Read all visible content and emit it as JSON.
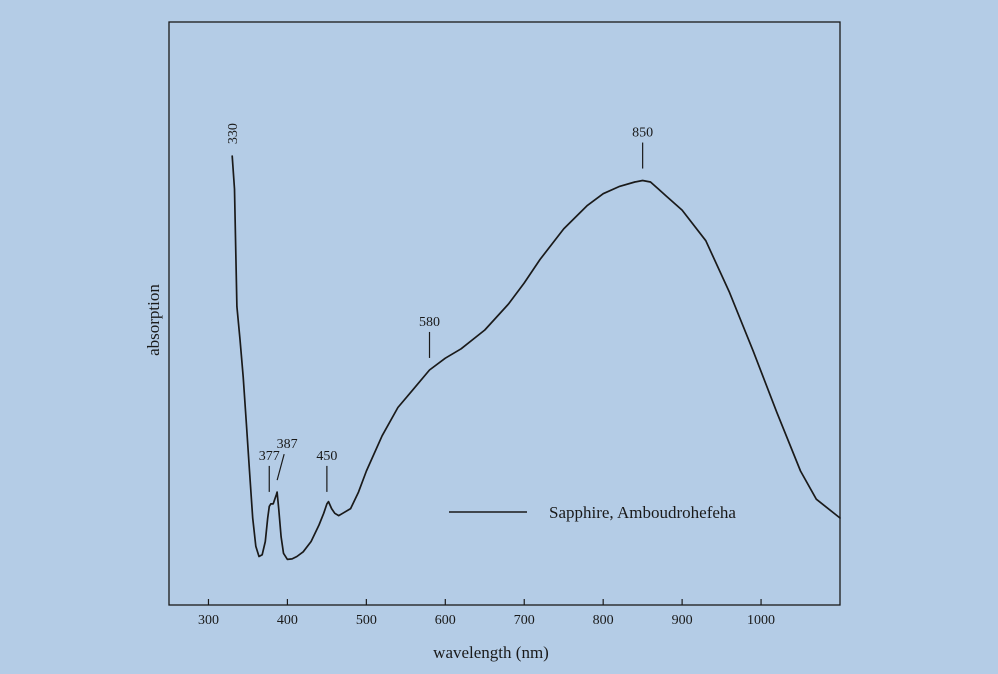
{
  "chart_data": {
    "type": "line",
    "title": "",
    "xlabel": "wavelength (nm)",
    "ylabel": "absorption",
    "xlim": [
      250,
      1100
    ],
    "ylim": [
      0,
      1
    ],
    "x_ticks": [
      300,
      400,
      500,
      600,
      700,
      800,
      900,
      1000
    ],
    "x_tick_labels": [
      "300",
      "400",
      "500",
      "600",
      "700",
      "800",
      "900",
      "1000"
    ],
    "y_ticks_shown": false,
    "grid": false,
    "legend": {
      "position": "bottom-right",
      "entries": [
        "Sapphire, Amboudrohefeha"
      ]
    },
    "series": [
      {
        "name": "Sapphire, Amboudrohefeha",
        "color": "#1a1a1a",
        "x": [
          330,
          333,
          336,
          340,
          344,
          348,
          352,
          356,
          360,
          364,
          368,
          372,
          375,
          377,
          379,
          382,
          384,
          386,
          387,
          389,
          392,
          395,
          400,
          406,
          412,
          420,
          430,
          440,
          446,
          450,
          452,
          456,
          460,
          465,
          470,
          480,
          490,
          500,
          520,
          540,
          560,
          580,
          600,
          620,
          650,
          680,
          700,
          720,
          750,
          780,
          800,
          820,
          840,
          850,
          860,
          870,
          880,
          900,
          930,
          960,
          990,
          1020,
          1050,
          1070,
          1100
        ],
        "y": [
          0.87,
          0.8,
          0.55,
          0.48,
          0.4,
          0.3,
          0.2,
          0.1,
          0.04,
          0.018,
          0.022,
          0.05,
          0.1,
          0.125,
          0.13,
          0.13,
          0.14,
          0.15,
          0.155,
          0.12,
          0.06,
          0.025,
          0.012,
          0.013,
          0.018,
          0.028,
          0.05,
          0.085,
          0.11,
          0.13,
          0.135,
          0.12,
          0.11,
          0.105,
          0.11,
          0.12,
          0.155,
          0.2,
          0.275,
          0.335,
          0.375,
          0.415,
          0.44,
          0.46,
          0.5,
          0.555,
          0.6,
          0.65,
          0.715,
          0.765,
          0.79,
          0.805,
          0.815,
          0.818,
          0.815,
          0.8,
          0.785,
          0.755,
          0.69,
          0.58,
          0.455,
          0.325,
          0.2,
          0.14,
          0.1
        ]
      }
    ],
    "annotations": [
      {
        "label": "330",
        "x": 330,
        "y": 0.87,
        "rotated": true
      },
      {
        "label": "377",
        "x": 377,
        "y": 0.13
      },
      {
        "label": "387",
        "x": 387,
        "y": 0.155
      },
      {
        "label": "450",
        "x": 450,
        "y": 0.13
      },
      {
        "label": "580",
        "x": 580,
        "y": 0.415
      },
      {
        "label": "850",
        "x": 850,
        "y": 0.818
      }
    ]
  }
}
